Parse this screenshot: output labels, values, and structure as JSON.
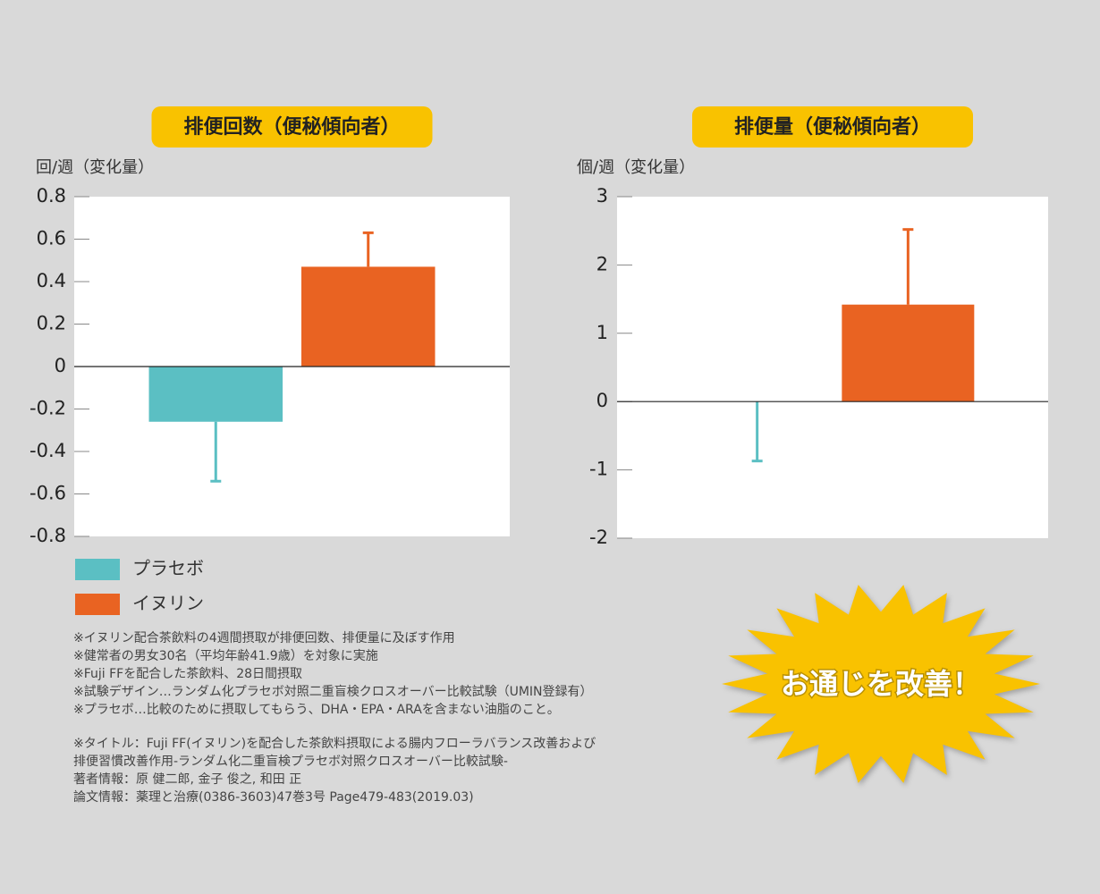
{
  "chart_data": [
    {
      "type": "bar",
      "title": "排便回数（便秘傾向者）",
      "y_label": "回/週（変化量）",
      "categories": [
        null
      ],
      "series": [
        {
          "name": "プラセボ",
          "color": "#5bbfc3",
          "values": [
            -0.26
          ],
          "errors": [
            0.28
          ]
        },
        {
          "name": "イヌリン",
          "color": "#e96322",
          "values": [
            0.47
          ],
          "errors": [
            0.16
          ]
        }
      ],
      "ylim": [
        -0.8,
        0.8
      ],
      "yticks": [
        0.8,
        0.6,
        0.4,
        0.2,
        0,
        -0.2,
        -0.4,
        -0.6,
        -0.8
      ],
      "legend": true
    },
    {
      "type": "bar",
      "title": "排便量（便秘傾向者）",
      "y_label": "個/週（変化量）",
      "categories": [
        null
      ],
      "series": [
        {
          "color": "#5bbfc3",
          "values": [
            0
          ],
          "errors": [
            0.87
          ]
        },
        {
          "color": "#e96322",
          "values": [
            1.42
          ],
          "errors": [
            1.1
          ]
        }
      ],
      "ylim": [
        -2,
        3
      ],
      "yticks": [
        3,
        2,
        1,
        0,
        -1,
        -2
      ],
      "legend": false
    }
  ],
  "notes": [
    [
      "※イヌリン配合茶飲料の4週間摂取が排便回数、排便量に及ぼす作用",
      "※健常者の男女30名（平均年齢41.9歳）を対象に実施",
      "※Fuji FFを配合した茶飲料、28日間摂取",
      "※試験デザイン…ランダム化プラセボ対照二重盲検クロスオーバー比較試験（UMIN登録有）",
      "※プラセボ…比較のために摂取してもらう、DHA・EPA・ARAを含まない油脂のこと。"
    ],
    [
      "※タイトル：Fuji FF(イヌリン)を配合した茶飲料摂取による腸内フローラバランス改善および",
      "排便習慣改善作用-ランダム化二重盲検プラセボ対照クロスオーバー比較試験-",
      "著者情報：原 健二郎, 金子 俊之, 和田 正",
      "論文情報：薬理と治療(0386-3603)47巻3号 Page479-483(2019.03)"
    ]
  ],
  "badge": "お通じを改善！"
}
